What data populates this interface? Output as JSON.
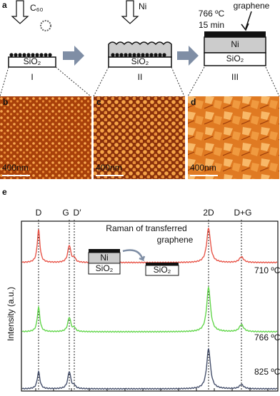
{
  "panel_a": {
    "label": "a",
    "c60": "C₆₀",
    "ni": "Ni",
    "condition": [
      "766 ºC",
      "15 min"
    ],
    "graphene": "graphene",
    "stages": [
      {
        "layers": [
          "SiO₂"
        ],
        "label": "I"
      },
      {
        "layers": [
          "SiO₂"
        ],
        "label": "II"
      },
      {
        "layers": [
          "Ni",
          "SiO₂"
        ],
        "label": "III"
      }
    ]
  },
  "afm": [
    {
      "label": "b",
      "scale": "400nm"
    },
    {
      "label": "c",
      "scale": "400nm"
    },
    {
      "label": "d",
      "scale": "400nm"
    }
  ],
  "panel_e": {
    "label": "e",
    "peaks": [
      "D",
      "G",
      "D′",
      "2D",
      "D+G"
    ],
    "inset_title": [
      "Raman of transferred",
      "graphene"
    ],
    "inset_layers": [
      "Ni",
      "SiO₂",
      "SiO₂"
    ],
    "temperatures": [
      "710 ºC",
      "766 ºC",
      "825 ºC"
    ],
    "y_label": "Intensity (a.u.)"
  }
}
